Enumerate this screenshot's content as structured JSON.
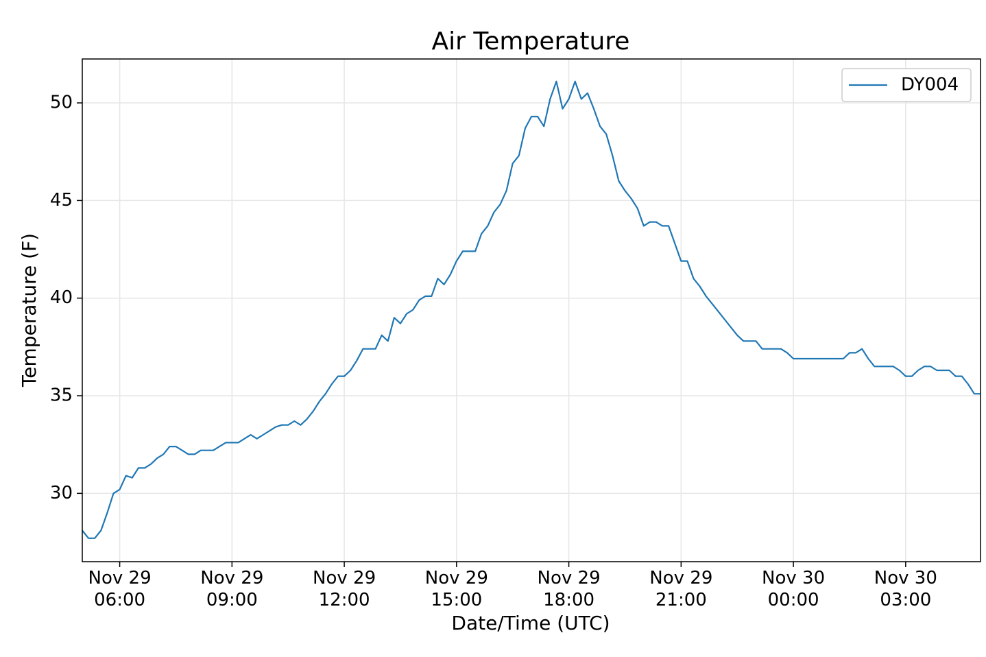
{
  "chart_data": {
    "type": "line",
    "title": "Air Temperature",
    "xlabel": "Date/Time (UTC)",
    "ylabel": "Temperature (F)",
    "x": [
      "Nov 29 05:00",
      "Nov 29 05:10",
      "Nov 29 05:20",
      "Nov 29 05:30",
      "Nov 29 05:40",
      "Nov 29 05:50",
      "Nov 29 06:00",
      "Nov 29 06:10",
      "Nov 29 06:20",
      "Nov 29 06:30",
      "Nov 29 06:40",
      "Nov 29 06:50",
      "Nov 29 07:00",
      "Nov 29 07:10",
      "Nov 29 07:20",
      "Nov 29 07:30",
      "Nov 29 07:40",
      "Nov 29 07:50",
      "Nov 29 08:00",
      "Nov 29 08:10",
      "Nov 29 08:20",
      "Nov 29 08:30",
      "Nov 29 08:40",
      "Nov 29 08:50",
      "Nov 29 09:00",
      "Nov 29 09:10",
      "Nov 29 09:20",
      "Nov 29 09:30",
      "Nov 29 09:40",
      "Nov 29 09:50",
      "Nov 29 10:00",
      "Nov 29 10:10",
      "Nov 29 10:20",
      "Nov 29 10:30",
      "Nov 29 10:40",
      "Nov 29 10:50",
      "Nov 29 11:00",
      "Nov 29 11:10",
      "Nov 29 11:20",
      "Nov 29 11:30",
      "Nov 29 11:40",
      "Nov 29 11:50",
      "Nov 29 12:00",
      "Nov 29 12:10",
      "Nov 29 12:20",
      "Nov 29 12:30",
      "Nov 29 12:40",
      "Nov 29 12:50",
      "Nov 29 13:00",
      "Nov 29 13:10",
      "Nov 29 13:20",
      "Nov 29 13:30",
      "Nov 29 13:40",
      "Nov 29 13:50",
      "Nov 29 14:00",
      "Nov 29 14:10",
      "Nov 29 14:20",
      "Nov 29 14:30",
      "Nov 29 14:40",
      "Nov 29 14:50",
      "Nov 29 15:00",
      "Nov 29 15:10",
      "Nov 29 15:20",
      "Nov 29 15:30",
      "Nov 29 15:40",
      "Nov 29 15:50",
      "Nov 29 16:00",
      "Nov 29 16:10",
      "Nov 29 16:20",
      "Nov 29 16:30",
      "Nov 29 16:40",
      "Nov 29 16:50",
      "Nov 29 17:00",
      "Nov 29 17:10",
      "Nov 29 17:20",
      "Nov 29 17:30",
      "Nov 29 17:40",
      "Nov 29 17:50",
      "Nov 29 18:00",
      "Nov 29 18:10",
      "Nov 29 18:20",
      "Nov 29 18:30",
      "Nov 29 18:40",
      "Nov 29 18:50",
      "Nov 29 19:00",
      "Nov 29 19:10",
      "Nov 29 19:20",
      "Nov 29 19:30",
      "Nov 29 19:40",
      "Nov 29 19:50",
      "Nov 29 20:00",
      "Nov 29 20:10",
      "Nov 29 20:20",
      "Nov 29 20:30",
      "Nov 29 20:40",
      "Nov 29 20:50",
      "Nov 29 21:00",
      "Nov 29 21:10",
      "Nov 29 21:20",
      "Nov 29 21:30",
      "Nov 29 21:40",
      "Nov 29 21:50",
      "Nov 29 22:00",
      "Nov 29 22:10",
      "Nov 29 22:20",
      "Nov 29 22:30",
      "Nov 29 22:40",
      "Nov 29 22:50",
      "Nov 29 23:00",
      "Nov 29 23:10",
      "Nov 29 23:20",
      "Nov 29 23:30",
      "Nov 29 23:40",
      "Nov 29 23:50",
      "Nov 30 00:00",
      "Nov 30 00:10",
      "Nov 30 00:20",
      "Nov 30 00:30",
      "Nov 30 00:40",
      "Nov 30 00:50",
      "Nov 30 01:00",
      "Nov 30 01:10",
      "Nov 30 01:20",
      "Nov 30 01:30",
      "Nov 30 01:40",
      "Nov 30 01:50",
      "Nov 30 02:00",
      "Nov 30 02:10",
      "Nov 30 02:20",
      "Nov 30 02:30",
      "Nov 30 02:40",
      "Nov 30 02:50",
      "Nov 30 03:00",
      "Nov 30 03:10",
      "Nov 30 03:20",
      "Nov 30 03:30",
      "Nov 30 03:40",
      "Nov 30 03:50",
      "Nov 30 04:00",
      "Nov 30 04:10",
      "Nov 30 04:20",
      "Nov 30 04:30",
      "Nov 30 04:40",
      "Nov 30 04:50",
      "Nov 30 05:00"
    ],
    "series": [
      {
        "name": "DY004",
        "color": "#1f77b4",
        "values": [
          28.1,
          27.7,
          27.7,
          28.1,
          29.0,
          30.0,
          30.2,
          30.9,
          30.8,
          31.3,
          31.3,
          31.5,
          31.8,
          32.0,
          32.4,
          32.4,
          32.2,
          32.0,
          32.0,
          32.2,
          32.2,
          32.2,
          32.4,
          32.6,
          32.6,
          32.6,
          32.8,
          33.0,
          32.8,
          33.0,
          33.2,
          33.4,
          33.5,
          33.5,
          33.7,
          33.5,
          33.8,
          34.2,
          34.7,
          35.1,
          35.6,
          36.0,
          36.0,
          36.3,
          36.8,
          37.4,
          37.4,
          37.4,
          38.1,
          37.8,
          39.0,
          38.7,
          39.2,
          39.4,
          39.9,
          40.1,
          40.1,
          41.0,
          40.7,
          41.2,
          41.9,
          42.4,
          42.4,
          42.4,
          43.3,
          43.7,
          44.4,
          44.8,
          45.5,
          46.9,
          47.3,
          48.7,
          49.3,
          49.3,
          48.8,
          50.2,
          51.1,
          49.7,
          50.2,
          51.1,
          50.2,
          50.5,
          49.7,
          48.8,
          48.4,
          47.3,
          46.0,
          45.5,
          45.1,
          44.6,
          43.7,
          43.9,
          43.9,
          43.7,
          43.7,
          42.8,
          41.9,
          41.9,
          41.0,
          40.6,
          40.1,
          39.7,
          39.3,
          38.9,
          38.5,
          38.1,
          37.8,
          37.8,
          37.8,
          37.4,
          37.4,
          37.4,
          37.4,
          37.2,
          36.9,
          36.9,
          36.9,
          36.9,
          36.9,
          36.9,
          36.9,
          36.9,
          36.9,
          37.2,
          37.2,
          37.4,
          36.9,
          36.5,
          36.5,
          36.5,
          36.5,
          36.3,
          36.0,
          36.0,
          36.3,
          36.5,
          36.5,
          36.3,
          36.3,
          36.3,
          36.0,
          36.0,
          35.6,
          35.1,
          35.1
        ]
      }
    ],
    "xlim": [
      "Nov 29 05:00",
      "Nov 30 05:00"
    ],
    "xticks": [
      "Nov 29 06:00",
      "Nov 29 09:00",
      "Nov 29 12:00",
      "Nov 29 15:00",
      "Nov 29 18:00",
      "Nov 29 21:00",
      "Nov 30 00:00",
      "Nov 30 03:00"
    ],
    "ylim": [
      26.5,
      52.25
    ],
    "yticks": [
      30,
      35,
      40,
      45,
      50
    ],
    "grid": true,
    "legend": "upper right"
  }
}
